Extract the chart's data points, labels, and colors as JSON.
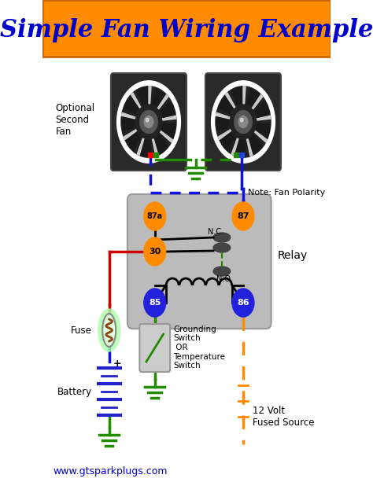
{
  "title": "Simple Fan Wiring Example",
  "title_color": "#0000CC",
  "title_bg": "#FF8C00",
  "bg_color": "#FFFFFF",
  "website": "www.gtsparkplugs.com",
  "website_color": "#0000CC",
  "relay_label": "Relay",
  "relay_bg": "#BBBBBB",
  "node_orange_color": "#FF8C00",
  "node_blue_color": "#2222DD",
  "wire_blue": "#1111DD",
  "wire_red": "#CC0000",
  "wire_green": "#228B00",
  "wire_orange": "#FF8C00",
  "wire_black": "#111111",
  "note_text": "Note: Fan Polarity",
  "ground_switch_text": "Grounding\nSwitch\n OR\nTemperature\nSwitch",
  "fuse_text": "Fuse",
  "battery_text": "Battery",
  "volt12_text": "12 Volt\nFused Source",
  "optional_text": "Optional\nSecond\nFan",
  "nc_label": "N.C.",
  "no_label": "N.O."
}
